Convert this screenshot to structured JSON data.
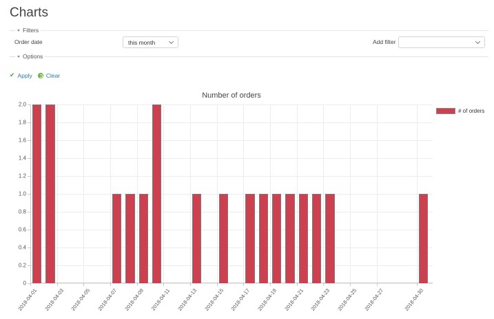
{
  "page": {
    "title": "Charts"
  },
  "filters": {
    "legend": "Filters",
    "order_date": {
      "label": "Order date",
      "value": "this month"
    },
    "add_filter": {
      "label": "Add filter",
      "value": ""
    }
  },
  "options": {
    "legend": "Options"
  },
  "actions": {
    "apply": "Apply",
    "clear": "Clear"
  },
  "colors": {
    "bar": "#cc4050",
    "link": "#2a7ab0",
    "apply_icon": "#4a9a3c",
    "clear_icon": "#6db33f"
  },
  "chart_data": {
    "type": "bar",
    "title": "Number of orders",
    "xlabel": "",
    "ylabel": "",
    "ylim": [
      0,
      2.0
    ],
    "yticks": [
      "0",
      "0.2",
      "0.4",
      "0.6",
      "0.8",
      "1.0",
      "1.2",
      "1.4",
      "1.6",
      "1.8",
      "2.0"
    ],
    "grid": true,
    "legend_position": "right",
    "x_tick_labels": [
      "2018-04-01",
      "2018-04-03",
      "2018-04-05",
      "2018-04-07",
      "2018-04-09",
      "2018-04-11",
      "2018-04-13",
      "2018-04-15",
      "2018-04-17",
      "2018-04-19",
      "2018-04-21",
      "2018-04-23",
      "2018-04-25",
      "2018-04-27",
      "2018-04-30"
    ],
    "categories": [
      "2018-04-01",
      "2018-04-02",
      "2018-04-03",
      "2018-04-04",
      "2018-04-05",
      "2018-04-06",
      "2018-04-07",
      "2018-04-08",
      "2018-04-09",
      "2018-04-10",
      "2018-04-11",
      "2018-04-12",
      "2018-04-13",
      "2018-04-14",
      "2018-04-15",
      "2018-04-16",
      "2018-04-17",
      "2018-04-18",
      "2018-04-19",
      "2018-04-20",
      "2018-04-21",
      "2018-04-22",
      "2018-04-23",
      "2018-04-24",
      "2018-04-25",
      "2018-04-26",
      "2018-04-27",
      "2018-04-28",
      "2018-04-29",
      "2018-04-30"
    ],
    "series": [
      {
        "name": "# of orders",
        "color": "#cc4050",
        "values": [
          2,
          2,
          0,
          0,
          0,
          0,
          1,
          1,
          1,
          2,
          0,
          0,
          1,
          0,
          1,
          0,
          1,
          1,
          1,
          1,
          1,
          1,
          1,
          0,
          0,
          0,
          0,
          0,
          0,
          1
        ]
      }
    ]
  }
}
